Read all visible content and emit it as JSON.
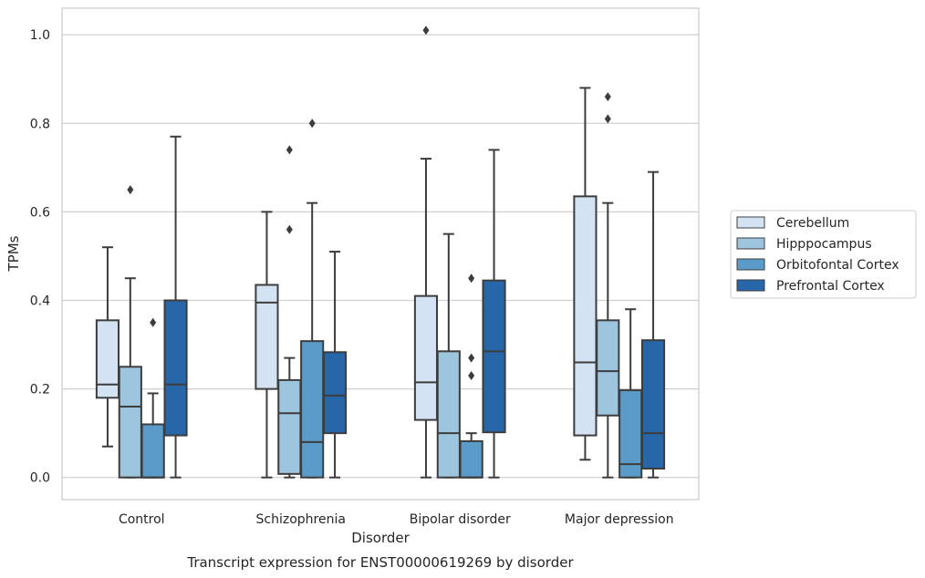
{
  "chart_data": {
    "type": "box",
    "title": "Transcript expression for ENST00000619269 by disorder",
    "xlabel": "Disorder",
    "ylabel": "TPMs",
    "ylim": [
      -0.05,
      1.06
    ],
    "yticks": [
      0.0,
      0.2,
      0.4,
      0.6,
      0.8,
      1.0
    ],
    "ytick_labels": [
      "0.0",
      "0.2",
      "0.4",
      "0.6",
      "0.8",
      "1.0"
    ],
    "grid": "horizontal",
    "legend_position": "right, outside plot",
    "categories": [
      "Control",
      "Schizophrenia",
      "Bipolar disorder",
      "Major depression"
    ],
    "series": [
      {
        "name": "Cerebellum",
        "color": "#d3e3f3",
        "boxes": [
          {
            "whisker_low": 0.07,
            "q1": 0.18,
            "median": 0.21,
            "q3": 0.355,
            "whisker_high": 0.52,
            "outliers": []
          },
          {
            "whisker_low": 0.0,
            "q1": 0.2,
            "median": 0.395,
            "q3": 0.435,
            "whisker_high": 0.6,
            "outliers": []
          },
          {
            "whisker_low": 0.0,
            "q1": 0.13,
            "median": 0.215,
            "q3": 0.41,
            "whisker_high": 0.72,
            "outliers": [
              1.01
            ]
          },
          {
            "whisker_low": 0.04,
            "q1": 0.095,
            "median": 0.26,
            "q3": 0.635,
            "whisker_high": 0.88,
            "outliers": []
          }
        ]
      },
      {
        "name": "Hipppocampus",
        "color": "#9dc5de",
        "boxes": [
          {
            "whisker_low": 0.0,
            "q1": 0.0,
            "median": 0.16,
            "q3": 0.25,
            "whisker_high": 0.45,
            "outliers": [
              0.65
            ]
          },
          {
            "whisker_low": 0.0,
            "q1": 0.008,
            "median": 0.145,
            "q3": 0.22,
            "whisker_high": 0.27,
            "outliers": [
              0.56,
              0.74
            ]
          },
          {
            "whisker_low": 0.0,
            "q1": 0.0,
            "median": 0.1,
            "q3": 0.285,
            "whisker_high": 0.55,
            "outliers": []
          },
          {
            "whisker_low": 0.0,
            "q1": 0.14,
            "median": 0.24,
            "q3": 0.355,
            "whisker_high": 0.62,
            "outliers": [
              0.81,
              0.86
            ]
          }
        ]
      },
      {
        "name": "Orbitofontal Cortex",
        "color": "#5a9bc9",
        "boxes": [
          {
            "whisker_low": 0.0,
            "q1": 0.0,
            "median": 0.0,
            "q3": 0.12,
            "whisker_high": 0.19,
            "outliers": [
              0.35
            ]
          },
          {
            "whisker_low": 0.0,
            "q1": 0.0,
            "median": 0.08,
            "q3": 0.308,
            "whisker_high": 0.62,
            "outliers": [
              0.8
            ]
          },
          {
            "whisker_low": 0.0,
            "q1": 0.0,
            "median": 0.0,
            "q3": 0.082,
            "whisker_high": 0.1,
            "outliers": [
              0.23,
              0.27,
              0.45
            ]
          },
          {
            "whisker_low": 0.0,
            "q1": 0.0,
            "median": 0.03,
            "q3": 0.197,
            "whisker_high": 0.38,
            "outliers": []
          }
        ]
      },
      {
        "name": "Prefrontal Cortex",
        "color": "#2666a9",
        "boxes": [
          {
            "whisker_low": 0.0,
            "q1": 0.095,
            "median": 0.21,
            "q3": 0.4,
            "whisker_high": 0.77,
            "outliers": []
          },
          {
            "whisker_low": 0.0,
            "q1": 0.1,
            "median": 0.185,
            "q3": 0.283,
            "whisker_high": 0.51,
            "outliers": []
          },
          {
            "whisker_low": 0.0,
            "q1": 0.102,
            "median": 0.285,
            "q3": 0.445,
            "whisker_high": 0.74,
            "outliers": []
          },
          {
            "whisker_low": 0.0,
            "q1": 0.02,
            "median": 0.1,
            "q3": 0.31,
            "whisker_high": 0.69,
            "outliers": []
          }
        ]
      }
    ]
  }
}
